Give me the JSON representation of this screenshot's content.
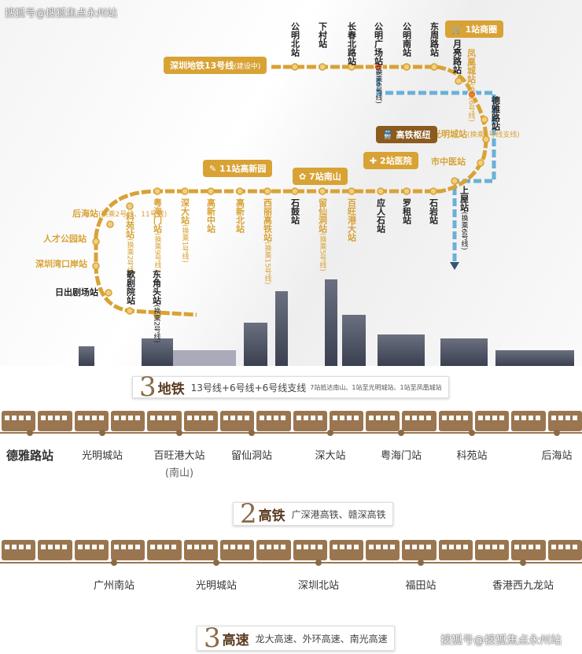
{
  "watermark": "搜狐号@搜狐焦点永州站",
  "line13_label": "深圳地铁13号线",
  "line13_sub": "(建设中)",
  "top_stations": [
    {
      "name": "公明北站"
    },
    {
      "name": "下村站"
    },
    {
      "name": "长春北路站"
    },
    {
      "name": "公明广场站",
      "note": "(换乘6号线)"
    },
    {
      "name": "公明南站"
    },
    {
      "name": "东周路站"
    },
    {
      "name": "月亮路站"
    },
    {
      "name": "凤凰城站",
      "note": "(换乘6号线)"
    },
    {
      "name": "德雅路站"
    }
  ],
  "right_stations": [
    {
      "name": "光明城站",
      "note": "(换乘6号线支线)"
    },
    {
      "name": "市中医站"
    }
  ],
  "bottom_stations": [
    {
      "name": "石岩站"
    },
    {
      "name": "罗租站"
    },
    {
      "name": "应人石站"
    },
    {
      "name": "百旺港大站"
    },
    {
      "name": "留仙洞站",
      "note": "(换乘5号线)"
    },
    {
      "name": "石鼓站"
    },
    {
      "name": "西丽高铁站",
      "note": "(换乘15号线)"
    },
    {
      "name": "高新北站"
    },
    {
      "name": "高新中站"
    },
    {
      "name": "深大站",
      "note": "(换乘1号线)"
    },
    {
      "name": "粤海门站",
      "note": "(换乘9号线)"
    },
    {
      "name": "科苑站",
      "note": "(换乘2号线)"
    }
  ],
  "left_stations": [
    {
      "name": "后海站",
      "note": "(换乘2号线、11号线)"
    },
    {
      "name": "人才公园站"
    },
    {
      "name": "深圳湾口岸站"
    },
    {
      "name": "日出剧场站"
    }
  ],
  "tail_stations": [
    {
      "name": "歌剧院站"
    },
    {
      "name": "东角头站",
      "note": "(换乘2号线)"
    }
  ],
  "shangwu": {
    "name": "上屋站",
    "note": "(换乘6号线)"
  },
  "tags": {
    "mall": "1站商圈",
    "hub": "高铁枢纽",
    "hospital": "2站医院",
    "hitech": "11站高新园",
    "nanshan": "7站南山"
  },
  "colors": {
    "line13": "#d8a235",
    "line6": "#6ab0d8",
    "brown": "#8a6a45"
  },
  "metro": {
    "num": "3",
    "title": "地铁",
    "desc": "13号线+6号线+6号线支线",
    "sub": "7站抵达南山、1站至光明城站、1站至凤凰城站",
    "stations": [
      "德雅路站",
      "光明城站",
      "百旺港大站",
      "留仙洞站",
      "深大站",
      "粤海门站",
      "科苑站",
      "后海站"
    ],
    "note": "(南山)"
  },
  "rail": {
    "num": "2",
    "title": "高铁",
    "desc": "广深港高铁、赣深高铁",
    "stations": [
      "广州南站",
      "光明城站",
      "深圳北站",
      "福田站",
      "香港西九龙站"
    ]
  },
  "road": {
    "num": "3",
    "title": "高速",
    "desc": "龙大高速、外环高速、南光高速"
  }
}
